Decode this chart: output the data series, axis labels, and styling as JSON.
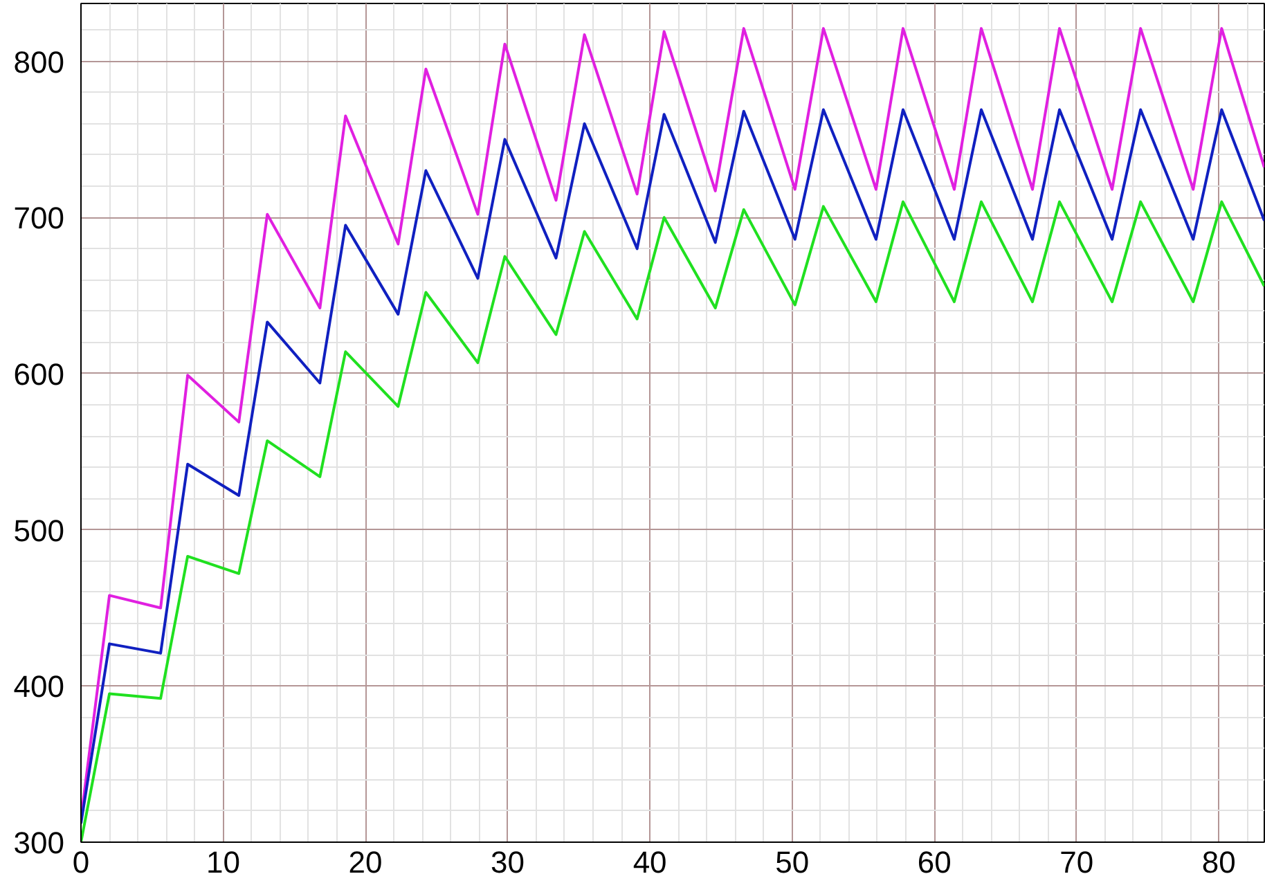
{
  "chart_data": {
    "type": "line",
    "xlim": [
      0,
      83.2
    ],
    "ylim": [
      300,
      837
    ],
    "xticks": [
      0,
      10,
      20,
      30,
      40,
      50,
      60,
      70,
      80
    ],
    "yticks": [
      300,
      400,
      500,
      600,
      700,
      800
    ],
    "grid": true,
    "line_style": "solid",
    "series": [
      {
        "color": "#e020e0",
        "x": [
          0,
          2.0,
          5.6,
          7.5,
          11.1,
          13.1,
          16.8,
          18.6,
          22.3,
          24.25,
          27.9,
          29.8,
          33.4,
          35.4,
          39.1,
          41.0,
          44.6,
          46.6,
          50.2,
          52.2,
          55.9,
          57.8,
          61.4,
          63.3,
          66.9,
          68.8,
          72.5,
          74.5,
          78.2,
          80.2,
          83.2
        ],
        "values": [
          315,
          458,
          450,
          599,
          569,
          702,
          642,
          765,
          683,
          795,
          702,
          811,
          711,
          817,
          715,
          819,
          717,
          821,
          718,
          821,
          718,
          821,
          718,
          821,
          718,
          821,
          718,
          821,
          718,
          821,
          732
        ]
      },
      {
        "color": "#1020c0",
        "x": [
          0,
          2.0,
          5.6,
          7.5,
          11.1,
          13.1,
          16.8,
          18.6,
          22.3,
          24.25,
          27.9,
          29.8,
          33.4,
          35.4,
          39.1,
          41.0,
          44.6,
          46.6,
          50.2,
          52.2,
          55.9,
          57.8,
          61.4,
          63.3,
          66.9,
          68.8,
          72.5,
          74.5,
          78.2,
          80.2,
          83.2
        ],
        "values": [
          312,
          427,
          421,
          542,
          522,
          633,
          594,
          695,
          638,
          730,
          661,
          750,
          674,
          760,
          680,
          766,
          684,
          768,
          686,
          769,
          686,
          769,
          686,
          769,
          686,
          769,
          686,
          769,
          686,
          769,
          698
        ]
      },
      {
        "color": "#20e020",
        "x": [
          0,
          2.0,
          5.6,
          7.5,
          11.1,
          13.1,
          16.8,
          18.6,
          22.3,
          24.25,
          27.9,
          29.8,
          33.4,
          35.4,
          39.1,
          41.0,
          44.6,
          46.6,
          50.2,
          52.2,
          55.9,
          57.8,
          61.4,
          63.3,
          66.9,
          68.8,
          72.5,
          74.5,
          78.2,
          80.2,
          83.2
        ],
        "values": [
          300,
          395,
          392,
          483,
          472,
          557,
          534,
          614,
          579,
          652,
          607,
          675,
          625,
          691,
          635,
          700,
          642,
          705,
          644,
          707,
          646,
          710,
          646,
          710,
          646,
          710,
          646,
          710,
          646,
          710,
          656
        ]
      }
    ]
  }
}
